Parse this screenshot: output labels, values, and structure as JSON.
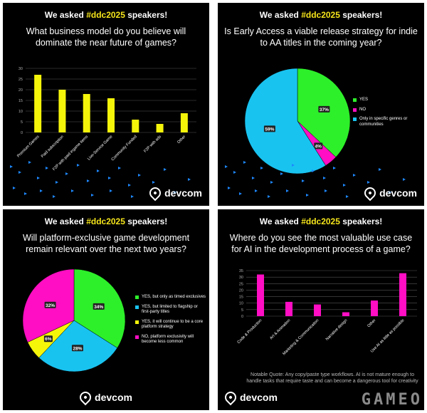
{
  "header": {
    "prefix": "We asked ",
    "hashtag": "#ddc2025",
    "suffix": " speakers!"
  },
  "brand": {
    "name": "devcom",
    "logo_icon": "location-pin-icon"
  },
  "watermark": "GAMEO",
  "colors": {
    "yellow": "#f5f50a",
    "magenta": "#ff0ec3",
    "cyan": "#19c3f0",
    "green": "#2df02a",
    "accent": "#f5e51b",
    "dots": "#1e88ff"
  },
  "panels": [
    {
      "question": "What business model do you believe will dominate the near future of games?"
    },
    {
      "question": "Is Early Access a viable release strategy for indie to AA titles in the coming year?"
    },
    {
      "question": "Will platform-exclusive game development remain relevant over the next two years?"
    },
    {
      "question": "Where do you see the most valuable use case for AI in the development process of a game?",
      "quote": "Notable Quote: Any copy/paste type workflows. AI is not mature enough to handle tasks that require taste and can become a dangerous tool for creativity"
    }
  ],
  "chart_data": [
    {
      "type": "bar",
      "title": "What business model do you believe will dominate the near future of games?",
      "categories": [
        "Premium Games",
        "Paid subscription",
        "F2P with paid ingame items",
        "Live-Service Game",
        "Community Funded",
        "F2P with ads",
        "Other"
      ],
      "values": [
        27,
        20,
        18,
        16,
        6,
        4,
        9
      ],
      "ylim": [
        0,
        30
      ],
      "yticks": [
        0,
        5,
        10,
        15,
        20,
        25,
        30
      ],
      "grid": true,
      "color": "#f5f50a"
    },
    {
      "type": "pie",
      "title": "Is Early Access a viable release strategy for indie to AA titles in the coming year?",
      "slices": [
        {
          "label": "YES",
          "value": 37,
          "display": "37%",
          "color": "#2df02a"
        },
        {
          "label": "NO",
          "value": 4,
          "display": "4%",
          "color": "#ff0ec3"
        },
        {
          "label": "Only in specific genres or communities",
          "value": 59,
          "display": "59%",
          "color": "#19c3f0"
        }
      ],
      "legend": "right"
    },
    {
      "type": "pie",
      "title": "Will platform-exclusive game development remain relevant over the next two years?",
      "slices": [
        {
          "label": "YES, but only as timed exclusives",
          "value": 34,
          "display": "34%",
          "color": "#2df02a"
        },
        {
          "label": "YES, but limited to flagship or first-party titles",
          "value": 28,
          "display": "28%",
          "color": "#19c3f0"
        },
        {
          "label": "YES, it will continue to be a core platform strategy",
          "value": 6,
          "display": "6%",
          "color": "#f5f50a"
        },
        {
          "label": "NO, platform exclusivity will become less common",
          "value": 32,
          "display": "32%",
          "color": "#ff0ec3"
        }
      ],
      "legend": "right"
    },
    {
      "type": "bar",
      "title": "Where do you see the most valuable use case for AI in the development process of a game?",
      "categories": [
        "Code & Production",
        "Art & Animation",
        "Marketing & Communication",
        "Narrative design",
        "Other",
        "Use AI as little as possible"
      ],
      "values": [
        32,
        11,
        9,
        3,
        12,
        33
      ],
      "ylim": [
        0,
        35
      ],
      "yticks": [
        0,
        5,
        10,
        15,
        20,
        25,
        30,
        35
      ],
      "grid": true,
      "color": "#ff0ec3"
    }
  ]
}
